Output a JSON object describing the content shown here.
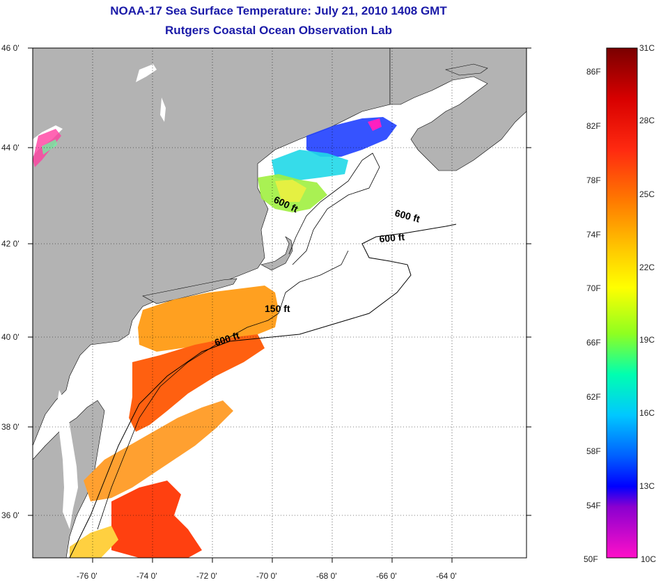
{
  "title": "NOAA-17 Sea Surface Temperature:  July 21, 2010 1408 GMT",
  "subtitle": "Rutgers Coastal Ocean Observation Lab",
  "lat_ticks": [
    "46 0'",
    "44 0'",
    "42 0'",
    "40 0'",
    "38 0'",
    "36 0'"
  ],
  "lon_ticks": [
    "-76 0'",
    "-74 0'",
    "-72 0'",
    "-70 0'",
    "-68 0'",
    "-66 0'",
    "-64 0'"
  ],
  "contours": [
    "600 ft",
    "600 ft",
    "600 ft",
    "150 ft",
    "600 ft"
  ],
  "colorbar": {
    "fahrenheit": [
      "86F",
      "82F",
      "78F",
      "74F",
      "70F",
      "66F",
      "62F",
      "58F",
      "54F",
      "50F"
    ],
    "celsius": [
      "31C",
      "28C",
      "25C",
      "22C",
      "19C",
      "16C",
      "13C",
      "10C"
    ],
    "colors": [
      "#8b0000",
      "#e01010",
      "#ff5a00",
      "#ffa500",
      "#ffff00",
      "#7fff00",
      "#00ffcc",
      "#0090ff",
      "#0000ff",
      "#8000c0",
      "#ff00c8"
    ]
  },
  "colors": {
    "land": "#b3b3b3",
    "water": "#ffffff",
    "title": "#1a1aa8"
  }
}
